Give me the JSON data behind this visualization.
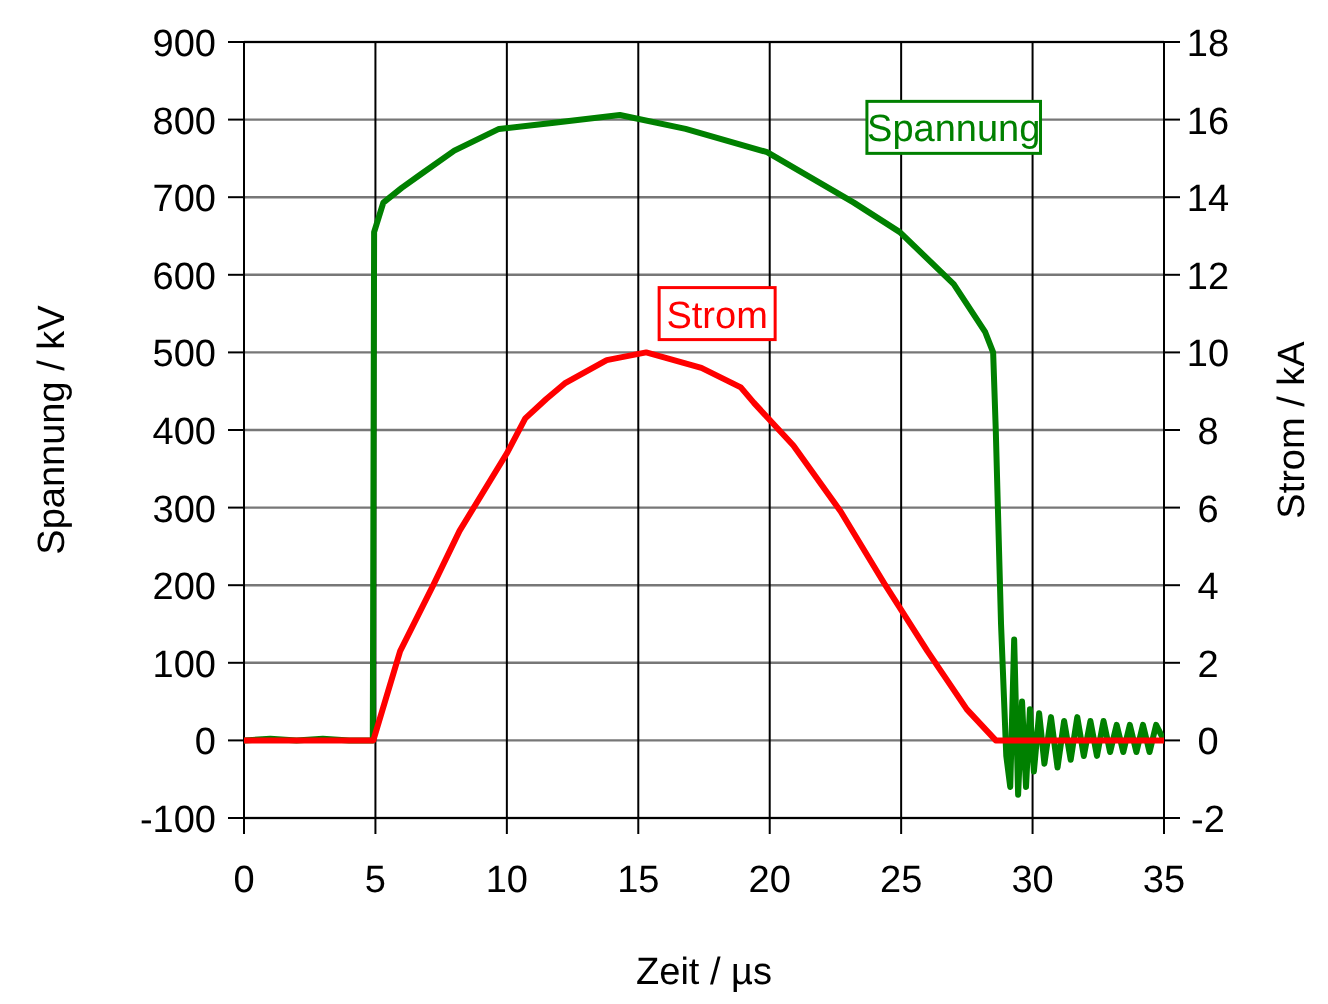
{
  "chart_data": {
    "type": "line",
    "xlabel": "Zeit / µs",
    "ylabel": "Spannung / kV",
    "y2label": "Strom / kA",
    "xlim": [
      0,
      35
    ],
    "xticks": [
      0,
      5,
      10,
      15,
      20,
      25,
      30,
      35
    ],
    "ylim": [
      -100,
      900
    ],
    "yticks": [
      -100,
      0,
      100,
      200,
      300,
      400,
      500,
      600,
      700,
      800,
      900
    ],
    "y2lim": [
      -2,
      18
    ],
    "y2ticks": [
      -2,
      0,
      2,
      4,
      6,
      8,
      10,
      12,
      14,
      16,
      18
    ],
    "grid": true,
    "legend": false,
    "line_style": "solid",
    "marker": "none",
    "series": [
      {
        "name": "Spannung",
        "color": "#008000",
        "x": [
          0,
          1,
          2,
          3,
          4,
          4.9,
          4.95,
          5.3,
          6,
          6.7,
          8,
          9.7,
          11.8,
          14.3,
          16.8,
          19.9,
          23.2,
          24.95,
          27,
          28.2,
          28.5,
          28.6,
          28.8,
          29,
          29.15,
          29.3,
          29.45,
          29.6,
          29.75,
          29.9,
          30.05,
          30.25,
          30.45,
          30.7,
          30.95,
          31.2,
          31.45,
          31.7,
          31.95,
          32.2,
          32.45,
          32.7,
          32.95,
          33.2,
          33.45,
          33.7,
          33.95,
          34.2,
          34.45,
          34.7,
          35
        ],
        "values": [
          0,
          2,
          0,
          2,
          0,
          0,
          655,
          693,
          712,
          729,
          760,
          788,
          796,
          806,
          788,
          758,
          693,
          655,
          588,
          526,
          500,
          400,
          150,
          -20,
          -60,
          130,
          -70,
          50,
          -60,
          40,
          -40,
          35,
          -30,
          30,
          -35,
          25,
          -25,
          30,
          -20,
          25,
          -20,
          25,
          -15,
          20,
          -15,
          20,
          -15,
          20,
          -15,
          20,
          0
        ]
      },
      {
        "name": "Strom",
        "color": "#ff0000",
        "axis": "y2",
        "x": [
          0,
          4.92,
          5.94,
          7.2,
          8.2,
          10,
          10.7,
          11.5,
          12.2,
          13.8,
          15.3,
          17.4,
          18.9,
          19.4,
          20.9,
          22.7,
          24.4,
          26,
          27.5,
          28.6,
          35
        ],
        "values": [
          0,
          0,
          2.3,
          4,
          5.4,
          7.4,
          8.3,
          8.8,
          9.2,
          9.8,
          10,
          9.6,
          9.1,
          8.7,
          7.6,
          5.9,
          4,
          2.3,
          0.8,
          0,
          0
        ]
      }
    ]
  }
}
